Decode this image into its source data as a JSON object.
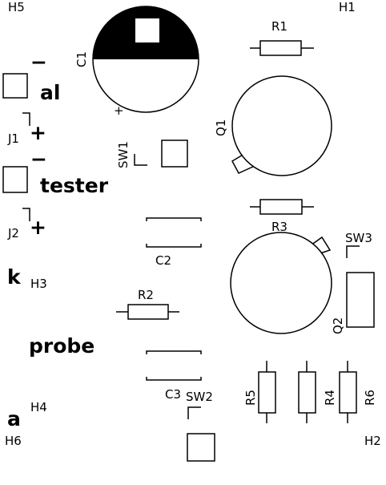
{
  "mounting_holes": {
    "h1": "H1",
    "h2": "H2",
    "h3": "H3",
    "h4": "H4",
    "h5": "H5",
    "h6": "H6"
  },
  "capacitors": {
    "c1": "C1",
    "c1_plus": "+",
    "c2": "C2",
    "c3": "C3"
  },
  "resistors": {
    "r1": "R1",
    "r2": "R2",
    "r3": "R3",
    "r4": "R4",
    "r5": "R5",
    "r6": "R6"
  },
  "transistors": {
    "q1": "Q1",
    "q2": "Q2"
  },
  "switches": {
    "sw1": "SW1",
    "sw2": "SW2",
    "sw3": "SW3"
  },
  "connectors": {
    "j1": "J1",
    "j2": "J2",
    "minus": "−",
    "plus": "+"
  },
  "silk_text": {
    "al": "al",
    "tester": "tester",
    "k": "k",
    "probe": "probe",
    "a": "a"
  }
}
